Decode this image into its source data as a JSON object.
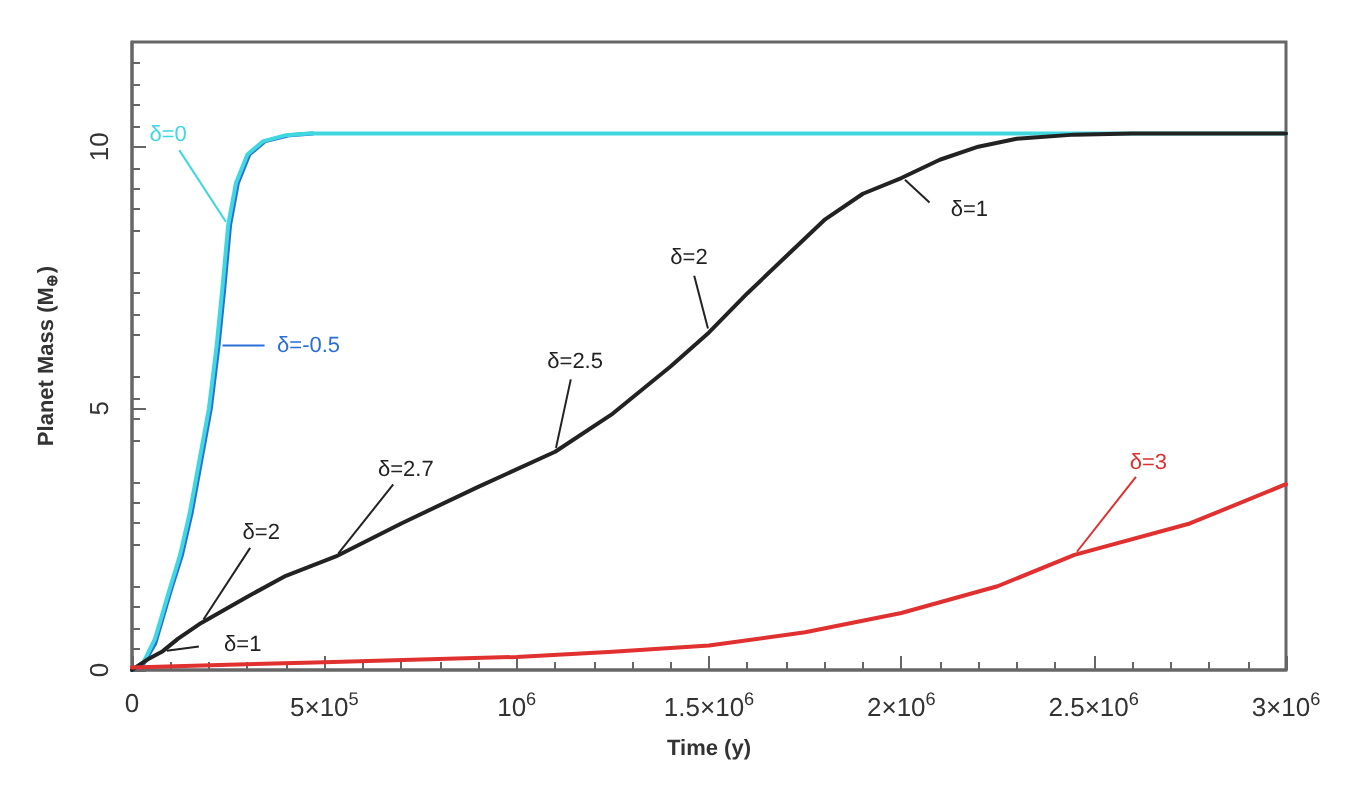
{
  "chart_data": {
    "type": "line",
    "xlabel": "Time (y)",
    "ylabel": "Planet Mass (M$_{⊕}$)",
    "xlim": [
      0,
      3000000
    ],
    "ylim": [
      0,
      12
    ],
    "xticks": [
      0,
      {
        "value": 500000,
        "label": "5×10$^{5}$"
      },
      {
        "value": 1000000,
        "label": "10$^{6}$"
      },
      {
        "value": 1500000,
        "label": "1.5×10$^{6}$"
      },
      {
        "value": 2000000,
        "label": "2×10$^{6}$"
      },
      {
        "value": 2500000,
        "label": "2.5×10$^{6}$"
      },
      {
        "value": 3000000,
        "label": "3×10$^{6}$"
      }
    ],
    "yticks": [
      0,
      5,
      10
    ],
    "grid": false,
    "marker": "none",
    "line_style": "solid",
    "series": [
      {
        "color": "#2a6fd6",
        "x": [
          0,
          30000,
          60000,
          100000,
          130000,
          155000,
          180000,
          205000,
          225000,
          240000,
          255000,
          275000,
          305000,
          345000,
          410000,
          470000
        ],
        "values": [
          0,
          0.12,
          0.5,
          1.5,
          2.2,
          3,
          4,
          5,
          6.2,
          7.3,
          8.5,
          9.3,
          9.85,
          10.1,
          10.22,
          10.25
        ]
      },
      {
        "color": "#40d8e0",
        "x": [
          0,
          30000,
          60000,
          96000,
          125000,
          150000,
          175000,
          200000,
          220000,
          235000,
          250000,
          270000,
          300000,
          340000,
          400000,
          460000,
          3000000
        ],
        "values": [
          0,
          0.15,
          0.6,
          1.5,
          2.2,
          3,
          4,
          5,
          6.2,
          7.3,
          8.5,
          9.3,
          9.85,
          10.1,
          10.22,
          10.25,
          10.25
        ]
      },
      {
        "color": "#222222",
        "x": [
          0,
          40000,
          80000,
          120000,
          180000,
          300000,
          400000,
          530000,
          700000,
          900000,
          1100000,
          1250000,
          1400000,
          1500000,
          1600000,
          1700000,
          1800000,
          1900000,
          2000000,
          2100000,
          2200000,
          2300000,
          2450000,
          2600000,
          3000000
        ],
        "values": [
          0,
          0.2,
          0.36,
          0.6,
          0.9,
          1.4,
          1.8,
          2.17,
          2.8,
          3.5,
          4.17,
          4.9,
          5.8,
          6.45,
          7.2,
          7.9,
          8.6,
          9.1,
          9.4,
          9.75,
          10,
          10.15,
          10.23,
          10.25,
          10.25
        ]
      },
      {
        "color": "#e03030",
        "x": [
          0,
          250000,
          500000,
          750000,
          1000000,
          1250000,
          1500000,
          1750000,
          2000000,
          2250000,
          2450000,
          2750000,
          3000000
        ],
        "values": [
          0.05,
          0.1,
          0.15,
          0.2,
          0.25,
          0.35,
          0.47,
          0.72,
          1.09,
          1.6,
          2.2,
          2.8,
          3.55
        ]
      }
    ],
    "annotations": [
      {
        "text": "δ=0",
        "x": 250000,
        "y": 8.5
      },
      {
        "text": "δ=-0.5",
        "x": 225000,
        "y": 6.2
      },
      {
        "text": "δ=1",
        "x": 80000,
        "y": 0.36
      },
      {
        "text": "δ=2",
        "x": 180000,
        "y": 0.9
      },
      {
        "text": "δ=2.7",
        "x": 530000,
        "y": 2.17
      },
      {
        "text": "δ=2.5",
        "x": 1100000,
        "y": 4.17
      },
      {
        "text": "δ=2",
        "x": 1500000,
        "y": 6.45
      },
      {
        "text": "δ=1",
        "x": 2000000,
        "y": 9.4
      },
      {
        "text": "δ=3",
        "x": 2450000,
        "y": 2.2
      }
    ]
  }
}
